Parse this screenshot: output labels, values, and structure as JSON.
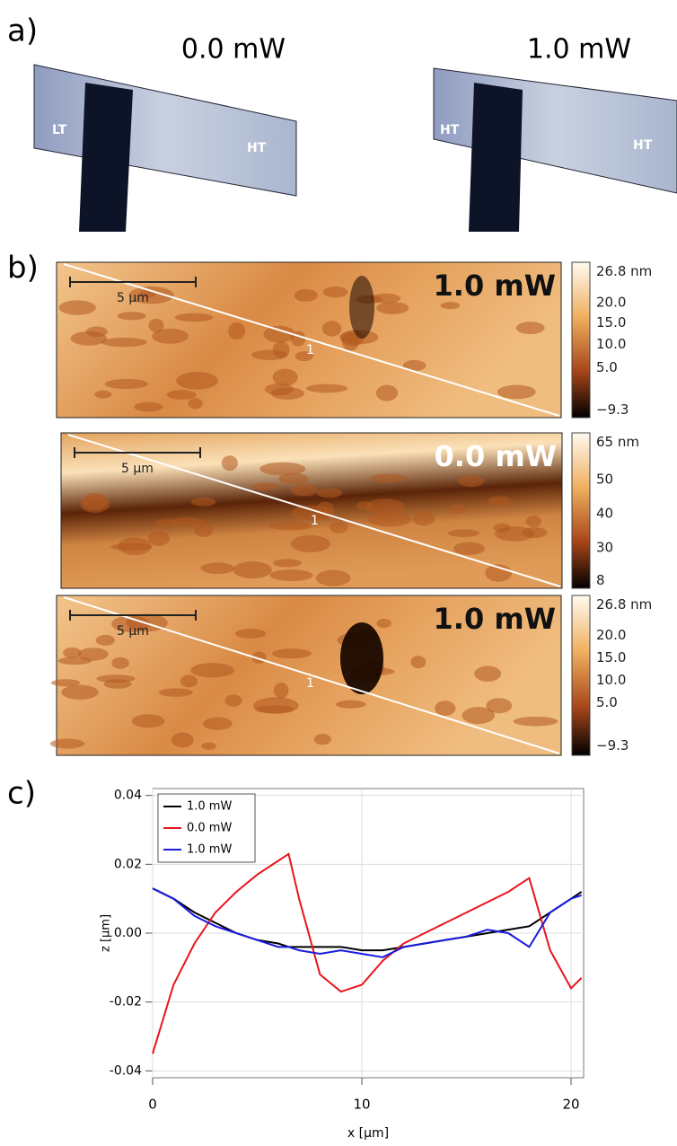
{
  "panel_a": {
    "label": "a)",
    "images": [
      {
        "power": "0.0 mW",
        "regions": [
          "LT",
          "HT"
        ]
      },
      {
        "power": "1.0 mW",
        "regions": [
          "HT",
          "HT"
        ]
      }
    ]
  },
  "panel_b": {
    "label": "b)",
    "images": [
      {
        "power": "1.0 mW",
        "scale_bar": "5 µm",
        "line_label": "1",
        "colorbar": [
          "26.8 nm",
          "20.0",
          "15.0",
          "10.0",
          "5.0",
          "−9.3"
        ]
      },
      {
        "power": "0.0 mW",
        "scale_bar": "5 µm",
        "line_label": "1",
        "colorbar": [
          "65 nm",
          "50",
          "40",
          "30",
          "8"
        ]
      },
      {
        "power": "1.0 mW",
        "scale_bar": "5 µm",
        "line_label": "1",
        "colorbar": [
          "26.8 nm",
          "20.0",
          "15.0",
          "10.0",
          "5.0",
          "−9.3"
        ]
      }
    ]
  },
  "panel_c": {
    "label": "c)"
  },
  "chart_data": {
    "type": "line",
    "x_label": "x [µm]",
    "y_label": "z [µm]",
    "x": [
      0,
      1,
      2,
      3,
      4,
      5,
      6,
      6.5,
      7,
      8,
      9,
      10,
      11,
      12,
      13,
      14,
      15,
      16,
      17,
      18,
      19,
      20,
      20.5
    ],
    "series": [
      {
        "name": "1.0 mW",
        "color": "#000000",
        "values": [
          0.013,
          0.01,
          0.006,
          0.003,
          0.0,
          -0.002,
          -0.003,
          -0.004,
          -0.004,
          -0.004,
          -0.004,
          -0.005,
          -0.005,
          -0.004,
          -0.003,
          -0.002,
          -0.001,
          0.0,
          0.001,
          0.002,
          0.006,
          0.01,
          0.012
        ]
      },
      {
        "name": "0.0 mW",
        "color": "#e8141c",
        "values": [
          -0.035,
          -0.015,
          -0.003,
          0.006,
          0.012,
          0.017,
          0.021,
          0.023,
          0.01,
          -0.012,
          -0.017,
          -0.015,
          -0.008,
          -0.003,
          0.0,
          0.003,
          0.006,
          0.009,
          0.012,
          0.016,
          -0.005,
          -0.016,
          -0.013
        ]
      },
      {
        "name": "1.0 mW",
        "color": "#1a1ae0",
        "values": [
          0.013,
          0.01,
          0.005,
          0.002,
          0.0,
          -0.002,
          -0.004,
          -0.004,
          -0.005,
          -0.006,
          -0.005,
          -0.006,
          -0.007,
          -0.004,
          -0.003,
          -0.002,
          -0.001,
          0.001,
          0.0,
          -0.004,
          0.006,
          0.01,
          0.011
        ]
      }
    ],
    "xlim": [
      0,
      20.6
    ],
    "xticks": [
      0,
      10,
      20
    ],
    "ylim": [
      -0.042,
      0.042
    ],
    "yticks": [
      0.04,
      0.02,
      {
        "value": 0,
        "label": "0.00"
      },
      -0.02,
      -0.04
    ],
    "grid": true,
    "legend": "upper left"
  }
}
